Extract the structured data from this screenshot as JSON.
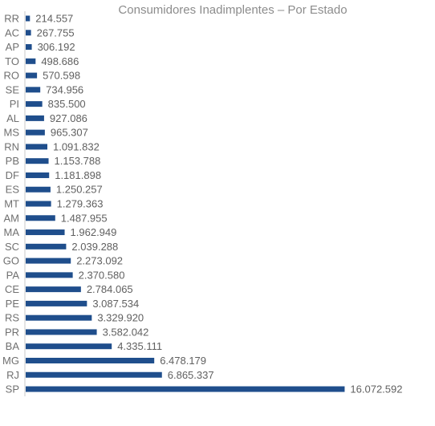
{
  "chart_data": {
    "type": "bar",
    "orientation": "horizontal",
    "title": "Consumidores Inadimplentes  – Por Estado",
    "xlabel": "",
    "ylabel": "",
    "grid": false,
    "legend": "none",
    "bar_color": "#1f4e8c",
    "xlim": [
      0,
      16500000
    ],
    "categories": [
      "RR",
      "AC",
      "AP",
      "TO",
      "RO",
      "SE",
      "PI",
      "AL",
      "MS",
      "RN",
      "PB",
      "DF",
      "ES",
      "MT",
      "AM",
      "MA",
      "SC",
      "GO",
      "PA",
      "CE",
      "PE",
      "RS",
      "PR",
      "BA",
      "MG",
      "RJ",
      "SP"
    ],
    "values": [
      214557,
      267755,
      306192,
      498686,
      570598,
      734956,
      835500,
      927086,
      965307,
      1091832,
      1153788,
      1181898,
      1250257,
      1279363,
      1487955,
      1962949,
      2039288,
      2273092,
      2370580,
      2784065,
      3087534,
      3329920,
      3582042,
      4335111,
      6478179,
      6865337,
      16072592
    ],
    "value_labels": [
      "214.557",
      "267.755",
      "306.192",
      "498.686",
      "570.598",
      "734.956",
      "835.500",
      "927.086",
      "965.307",
      "1.091.832",
      "1.153.788",
      "1.181.898",
      "1.250.257",
      "1.279.363",
      "1.487.955",
      "1.962.949",
      "2.039.288",
      "2.273.092",
      "2.370.580",
      "2.784.065",
      "3.087.534",
      "3.329.920",
      "3.582.042",
      "4.335.111",
      "6.478.179",
      "6.865.337",
      "16.072.592"
    ]
  }
}
